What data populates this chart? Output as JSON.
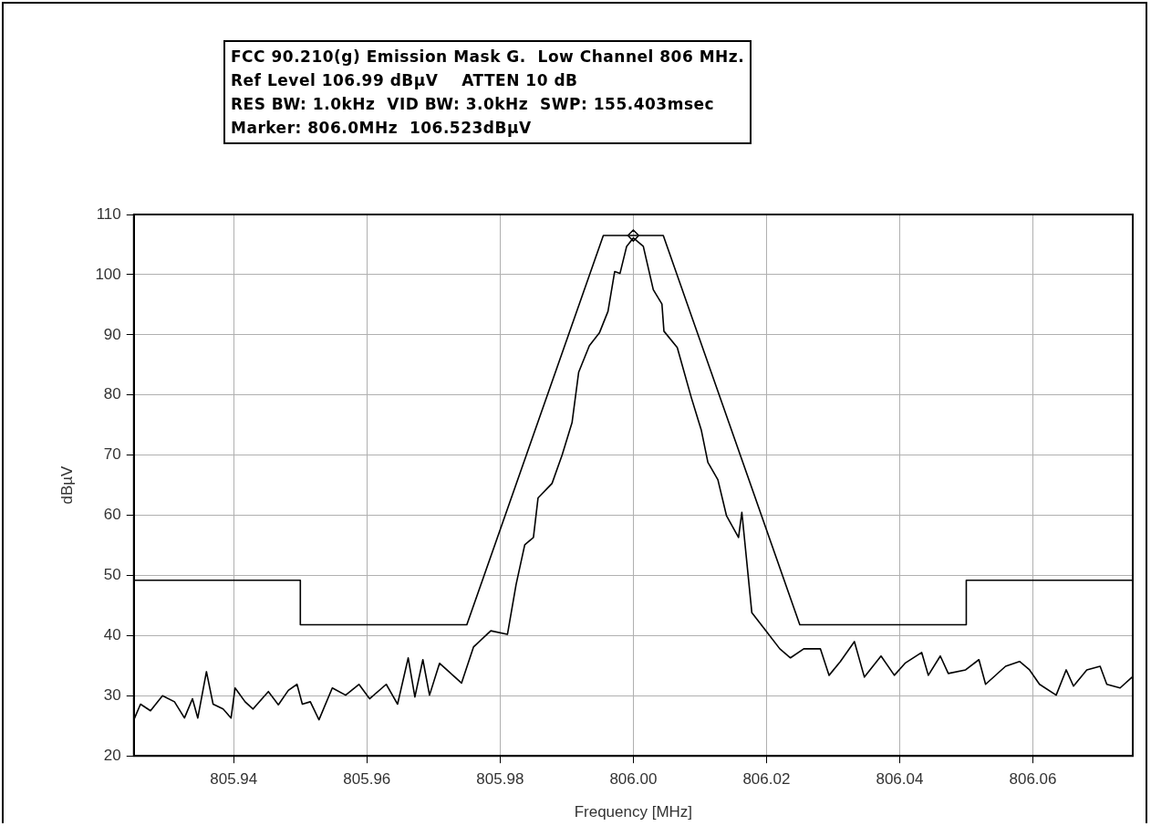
{
  "chart_data": {
    "type": "line",
    "title": "FCC 90.210(g) Emission Mask G.  Low Channel 806 MHz.",
    "annotations": [
      "Ref Level 106.99 dBµV    ATTEN 10 dB",
      "RES BW: 1.0kHz  VID BW: 3.0kHz  SWP: 155.403msec",
      "Marker: 806.0MHz  106.523dBµV"
    ],
    "xlabel": "Frequency [MHz]",
    "ylabel": "dBµV",
    "xlim": [
      805.925,
      806.075
    ],
    "ylim": [
      20,
      110
    ],
    "xticks": [
      805.94,
      805.96,
      805.98,
      {
        "value": 806.0,
        "label": "806.00"
      },
      806.02,
      806.04,
      806.06
    ],
    "yticks": [
      20,
      30,
      40,
      50,
      60,
      70,
      80,
      90,
      100,
      110
    ],
    "grid": true,
    "legend": false,
    "marker": "none",
    "line_style": "solid",
    "series": [
      {
        "color": "#000000",
        "x": [
          805.925,
          805.926,
          805.9275,
          805.9293,
          805.9311,
          805.9326,
          805.9338,
          805.9346,
          805.9359,
          805.9369,
          805.9384,
          805.9396,
          805.9402,
          805.9417,
          805.9429,
          805.9452,
          805.9467,
          805.9482,
          805.9495,
          805.9503,
          805.9515,
          805.9528,
          805.9548,
          805.9568,
          805.9588,
          805.9604,
          805.9629,
          805.9646,
          805.9662,
          805.9672,
          805.9684,
          805.9694,
          805.9709,
          805.9742,
          805.976,
          805.9786,
          805.9811,
          805.9824,
          805.9837,
          805.985,
          805.9857,
          805.9878,
          805.9893,
          805.9908,
          805.9918,
          805.9934,
          805.9949,
          805.9962,
          805.9972,
          805.998,
          805.999,
          806.0,
          806.0015,
          806.003,
          806.0043,
          806.0046,
          806.0066,
          806.0087,
          806.0102,
          806.0112,
          806.0127,
          806.014,
          806.0158,
          806.0163,
          806.0178,
          806.0199,
          806.022,
          806.0236,
          806.0256,
          806.0281,
          806.0294,
          806.0311,
          806.0332,
          806.0347,
          806.0372,
          806.0392,
          806.0408,
          806.0433,
          806.0443,
          806.0461,
          806.0473,
          806.0499,
          806.0519,
          806.0529,
          806.0559,
          806.058,
          806.0595,
          806.061,
          806.0635,
          806.065,
          806.0661,
          806.0681,
          806.0701,
          806.0711,
          806.0731,
          806.0749
        ],
        "values": [
          26,
          28.6,
          27.5,
          30,
          29,
          26.3,
          29.5,
          26.3,
          34,
          28.6,
          27.8,
          26.3,
          31.3,
          29,
          27.8,
          30.7,
          28.5,
          30.9,
          31.9,
          28.6,
          29,
          26,
          31.3,
          30.1,
          31.9,
          29.5,
          31.9,
          28.6,
          36.3,
          29.8,
          36,
          30.1,
          35.4,
          32.1,
          38.1,
          40.8,
          40.2,
          48.5,
          55.1,
          56.3,
          62.9,
          65.3,
          70,
          75.4,
          83.8,
          88.2,
          90.3,
          93.9,
          100.5,
          100.2,
          104.7,
          106.1,
          104.7,
          97.5,
          95.1,
          90.6,
          87.9,
          79.6,
          74.2,
          68.8,
          65.9,
          59.9,
          56.3,
          60.5,
          43.8,
          40.8,
          37.8,
          36.3,
          37.8,
          37.8,
          33.4,
          35.7,
          39,
          33.1,
          36.6,
          33.4,
          35.4,
          37.2,
          33.4,
          36.6,
          33.7,
          34.3,
          36,
          31.9,
          34.9,
          35.7,
          34.3,
          31.9,
          30.1,
          34.3,
          31.6,
          34.3,
          34.9,
          31.9,
          31.3,
          33.1
        ]
      },
      {
        "color": "#000000",
        "x": [
          805.925,
          805.95,
          805.95,
          805.975,
          805.9955,
          806.0045,
          806.025,
          806.05,
          806.05,
          806.075
        ],
        "values": [
          49.2,
          49.2,
          41.8,
          41.8,
          106.5,
          106.5,
          41.8,
          41.8,
          49.2,
          49.2
        ]
      },
      {
        "type": "scatter",
        "color": "#000000",
        "marker": "diamond",
        "x": [
          806.0
        ],
        "values": [
          106.5
        ]
      }
    ]
  }
}
